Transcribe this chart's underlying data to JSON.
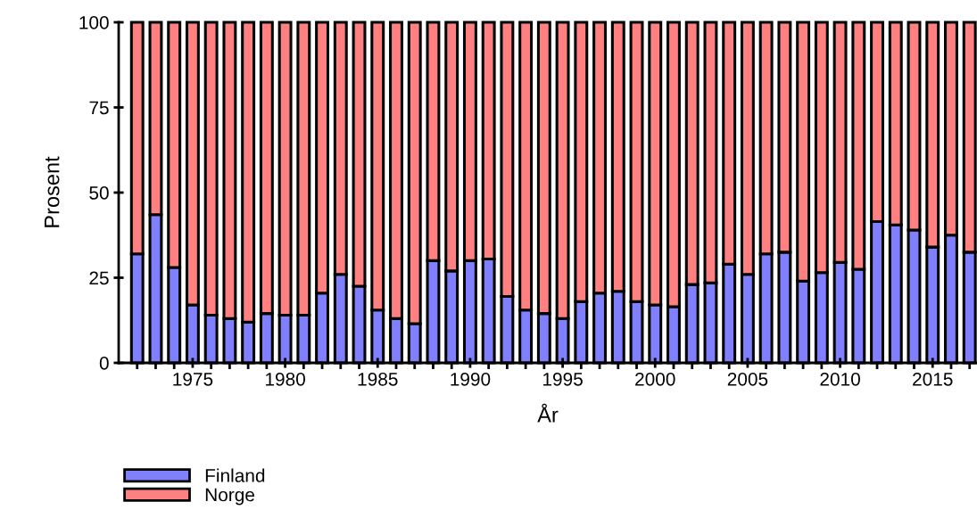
{
  "chart_data": {
    "type": "bar",
    "stacked": true,
    "xlabel": "År",
    "ylabel": "Prosent",
    "x": [
      1972,
      1973,
      1974,
      1975,
      1976,
      1977,
      1978,
      1979,
      1980,
      1981,
      1982,
      1983,
      1984,
      1985,
      1986,
      1987,
      1988,
      1989,
      1990,
      1991,
      1992,
      1993,
      1994,
      1995,
      1996,
      1997,
      1998,
      1999,
      2000,
      2001,
      2002,
      2003,
      2004,
      2005,
      2006,
      2007,
      2008,
      2009,
      2010,
      2011,
      2012,
      2013,
      2014,
      2015,
      2016,
      2017
    ],
    "series": [
      {
        "name": "Finland",
        "color": "#8080ff",
        "values": [
          32,
          43.5,
          28,
          17,
          14,
          13,
          12,
          14.5,
          14,
          14,
          20.5,
          26,
          22.5,
          15.5,
          13,
          11.5,
          30,
          27,
          30,
          30.5,
          19.5,
          15.5,
          14.5,
          13,
          18,
          20.5,
          21,
          18,
          17,
          16.5,
          23,
          23.5,
          29,
          26,
          32,
          32.5,
          24,
          26.5,
          29.5,
          27.5,
          41.5,
          40.5,
          39,
          34,
          37.5,
          32.5
        ]
      },
      {
        "name": "Norge",
        "color": "#ff8080",
        "values": [
          68,
          56.5,
          72,
          83,
          86,
          87,
          88,
          85.5,
          86,
          86,
          79.5,
          74,
          77.5,
          84.5,
          87,
          88.5,
          70,
          73,
          70,
          69.5,
          80.5,
          84.5,
          85.5,
          87,
          82,
          79.5,
          79,
          82,
          83,
          83.5,
          77,
          76.5,
          71,
          74,
          68,
          67.5,
          76,
          73.5,
          70.5,
          72.5,
          58.5,
          59.5,
          61,
          66,
          62.5,
          67.5
        ]
      }
    ],
    "xlim": [
      1971,
      2017.4
    ],
    "xticks": [
      1975,
      1980,
      1985,
      1990,
      1995,
      2000,
      2005,
      2010,
      2015
    ],
    "ylim": [
      0,
      100
    ],
    "yticks": [
      0,
      25,
      50,
      75,
      100
    ],
    "grid": false,
    "legend": "bottom left"
  }
}
